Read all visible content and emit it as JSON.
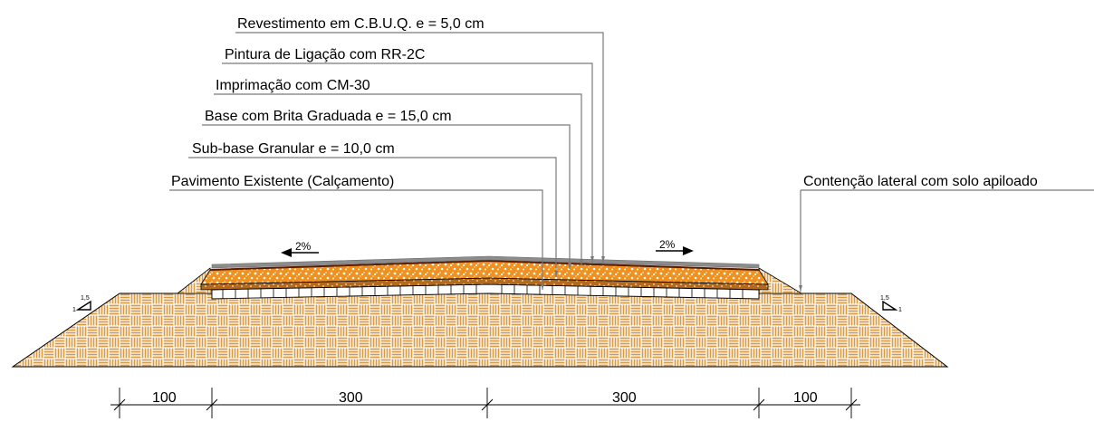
{
  "layers": [
    {
      "key": "revestimento",
      "label": "Revestimento em C.B.U.Q. e = 5,0 cm"
    },
    {
      "key": "pintura",
      "label": "Pintura de Ligação com RR-2C"
    },
    {
      "key": "imprimacao",
      "label": "Imprimação com CM-30"
    },
    {
      "key": "base",
      "label": "Base com Brita Graduada e = 15,0 cm"
    },
    {
      "key": "subbase",
      "label": "Sub-base Granular e = 10,0 cm"
    },
    {
      "key": "pavimento",
      "label": "Pavimento Existente (Calçamento)"
    }
  ],
  "contencao_label": "Contenção lateral com solo apiloado",
  "slopes": {
    "left": "2%",
    "right": "2%"
  },
  "embankment_slope": {
    "h": "1,5",
    "v": "1"
  },
  "dimensions": [
    "100",
    "300",
    "300",
    "100"
  ],
  "colors": {
    "fill_brown": "#d79a45",
    "fill_orange": "#f08a1a",
    "asphalt": "#8c8c8c",
    "leader": "#7a7a7a"
  }
}
